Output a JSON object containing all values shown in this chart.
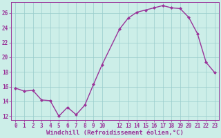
{
  "x": [
    0,
    1,
    2,
    3,
    4,
    5,
    6,
    7,
    8,
    9,
    10,
    12,
    13,
    14,
    15,
    16,
    17,
    18,
    19,
    20,
    21,
    22,
    23
  ],
  "y": [
    15.8,
    15.4,
    15.5,
    14.2,
    14.1,
    12.0,
    13.2,
    12.2,
    13.5,
    16.3,
    19.0,
    23.8,
    25.3,
    26.1,
    26.4,
    26.7,
    27.0,
    26.7,
    26.6,
    25.4,
    23.2,
    19.3,
    17.9
  ],
  "line_color": "#993399",
  "marker": "D",
  "marker_size": 2.0,
  "bg_color": "#cceee8",
  "grid_color": "#99cccc",
  "xlabel": "Windchill (Refroidissement éolien,°C)",
  "xlabel_color": "#993399",
  "tick_color": "#993399",
  "ylabel_ticks": [
    12,
    14,
    16,
    18,
    20,
    22,
    24,
    26
  ],
  "ylim": [
    11.5,
    27.5
  ],
  "xlim": [
    -0.5,
    23.5
  ],
  "xticks": [
    0,
    1,
    2,
    3,
    4,
    5,
    6,
    7,
    8,
    9,
    10,
    12,
    13,
    14,
    15,
    16,
    17,
    18,
    19,
    20,
    21,
    22,
    23
  ],
  "tick_fontsize": 5.5,
  "xlabel_fontsize": 6.5,
  "linewidth": 1.0
}
